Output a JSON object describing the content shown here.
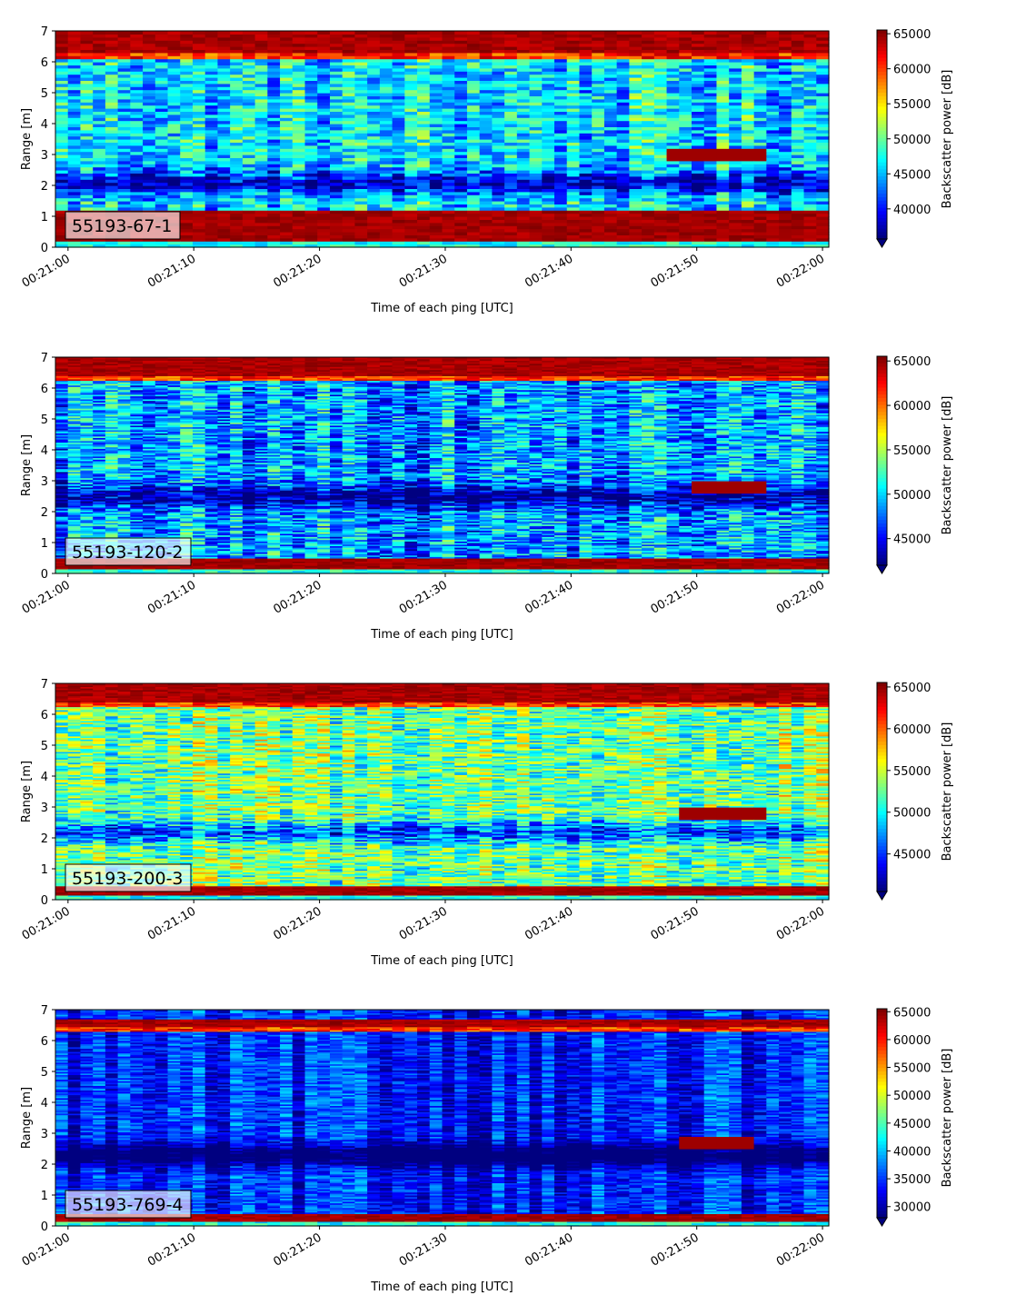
{
  "figure": {
    "x_label": "Time of each ping [UTC]",
    "y_label": "Range [m]",
    "colorbar_label": "Backscatter power [dB]"
  },
  "chart_data": [
    {
      "type": "heatmap",
      "label": "55193-67-1",
      "x_ticks": [
        "00:21:00",
        "00:21:10",
        "00:21:20",
        "00:21:30",
        "00:21:40",
        "00:21:50",
        "00:22:00"
      ],
      "xlim_seconds": [
        -1,
        60.5
      ],
      "y_ticks": [
        0,
        1,
        2,
        3,
        4,
        5,
        6,
        7
      ],
      "ylim": [
        0,
        7
      ],
      "colorbar_ticks": [
        40000,
        45000,
        50000,
        55000,
        60000,
        65000
      ],
      "colorbar_range": [
        35700,
        65535
      ],
      "colormap": "jet",
      "features": {
        "near_band_m": [
          0.2,
          1.15
        ],
        "far_band_m": [
          6.3,
          7.0
        ],
        "dark_layer_m": 2.1,
        "target": {
          "t_start": 47.5,
          "t_end": 56,
          "range_m": 3.0
        }
      }
    },
    {
      "type": "heatmap",
      "label": "55193-120-2",
      "x_ticks": [
        "00:21:00",
        "00:21:10",
        "00:21:20",
        "00:21:30",
        "00:21:40",
        "00:21:50",
        "00:22:00"
      ],
      "xlim_seconds": [
        -1,
        60.5
      ],
      "y_ticks": [
        0,
        1,
        2,
        3,
        4,
        5,
        6,
        7
      ],
      "ylim": [
        0,
        7
      ],
      "colorbar_ticks": [
        45000,
        50000,
        55000,
        60000,
        65000
      ],
      "colorbar_range": [
        42000,
        65535
      ],
      "colormap": "jet",
      "features": {
        "near_band_m": [
          0.15,
          0.5
        ],
        "far_band_m": [
          6.4,
          7.0
        ],
        "dark_layer_m": 2.5,
        "target": {
          "t_start": 49.5,
          "t_end": 56,
          "range_m": 2.8
        }
      }
    },
    {
      "type": "heatmap",
      "label": "55193-200-3",
      "x_ticks": [
        "00:21:00",
        "00:21:10",
        "00:21:20",
        "00:21:30",
        "00:21:40",
        "00:21:50",
        "00:22:00"
      ],
      "xlim_seconds": [
        -1,
        60.5
      ],
      "y_ticks": [
        0,
        1,
        2,
        3,
        4,
        5,
        6,
        7
      ],
      "ylim": [
        0,
        7
      ],
      "colorbar_ticks": [
        45000,
        50000,
        55000,
        60000,
        65000
      ],
      "colorbar_range": [
        40500,
        65535
      ],
      "colormap": "jet",
      "features": {
        "near_band_m": [
          0.15,
          0.45
        ],
        "far_band_m": [
          6.4,
          7.0
        ],
        "dark_layer_m": 2.2,
        "target": {
          "t_start": 48.5,
          "t_end": 56,
          "range_m": 2.8
        }
      }
    },
    {
      "type": "heatmap",
      "label": "55193-769-4",
      "x_ticks": [
        "00:21:00",
        "00:21:10",
        "00:21:20",
        "00:21:30",
        "00:21:40",
        "00:21:50",
        "00:22:00"
      ],
      "xlim_seconds": [
        -1,
        60.5
      ],
      "y_ticks": [
        0,
        1,
        2,
        3,
        4,
        5,
        6,
        7
      ],
      "ylim": [
        0,
        7
      ],
      "colorbar_ticks": [
        30000,
        35000,
        40000,
        45000,
        50000,
        55000,
        60000,
        65000
      ],
      "colorbar_range": [
        28000,
        65535
      ],
      "colormap": "jet",
      "features": {
        "near_band_m": [
          0.15,
          0.4
        ],
        "far_band_m": [
          6.45,
          6.7
        ],
        "dark_layer_m": 2.3,
        "target": {
          "t_start": 48.5,
          "t_end": 55,
          "range_m": 2.7
        }
      }
    }
  ]
}
